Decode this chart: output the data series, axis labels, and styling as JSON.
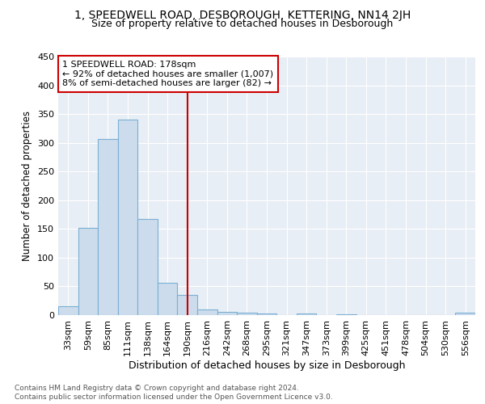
{
  "title1": "1, SPEEDWELL ROAD, DESBOROUGH, KETTERING, NN14 2JH",
  "title2": "Size of property relative to detached houses in Desborough",
  "xlabel": "Distribution of detached houses by size in Desborough",
  "ylabel": "Number of detached properties",
  "bar_labels": [
    "33sqm",
    "59sqm",
    "85sqm",
    "111sqm",
    "138sqm",
    "164sqm",
    "190sqm",
    "216sqm",
    "242sqm",
    "268sqm",
    "295sqm",
    "321sqm",
    "347sqm",
    "373sqm",
    "399sqm",
    "425sqm",
    "451sqm",
    "478sqm",
    "504sqm",
    "530sqm",
    "556sqm"
  ],
  "bar_values": [
    15,
    152,
    307,
    341,
    167,
    56,
    35,
    10,
    6,
    4,
    3,
    0,
    3,
    0,
    2,
    0,
    0,
    0,
    0,
    0,
    4
  ],
  "bar_color": "#ccdcec",
  "bar_edge_color": "#7aafd4",
  "vline_x_idx": 6,
  "vline_color": "#cc0000",
  "annotation_text": "1 SPEEDWELL ROAD: 178sqm\n← 92% of detached houses are smaller (1,007)\n8% of semi-detached houses are larger (82) →",
  "annotation_box_facecolor": "#ffffff",
  "annotation_box_edgecolor": "#cc0000",
  "footer1": "Contains HM Land Registry data © Crown copyright and database right 2024.",
  "footer2": "Contains public sector information licensed under the Open Government Licence v3.0.",
  "plot_bg_color": "#e8eef5",
  "fig_bg_color": "#ffffff",
  "ylim": [
    0,
    450
  ],
  "yticks": [
    0,
    50,
    100,
    150,
    200,
    250,
    300,
    350,
    400,
    450
  ],
  "title1_fontsize": 10,
  "title2_fontsize": 9,
  "xlabel_fontsize": 9,
  "ylabel_fontsize": 8.5,
  "tick_fontsize": 8,
  "annot_fontsize": 8,
  "footer_fontsize": 6.5
}
